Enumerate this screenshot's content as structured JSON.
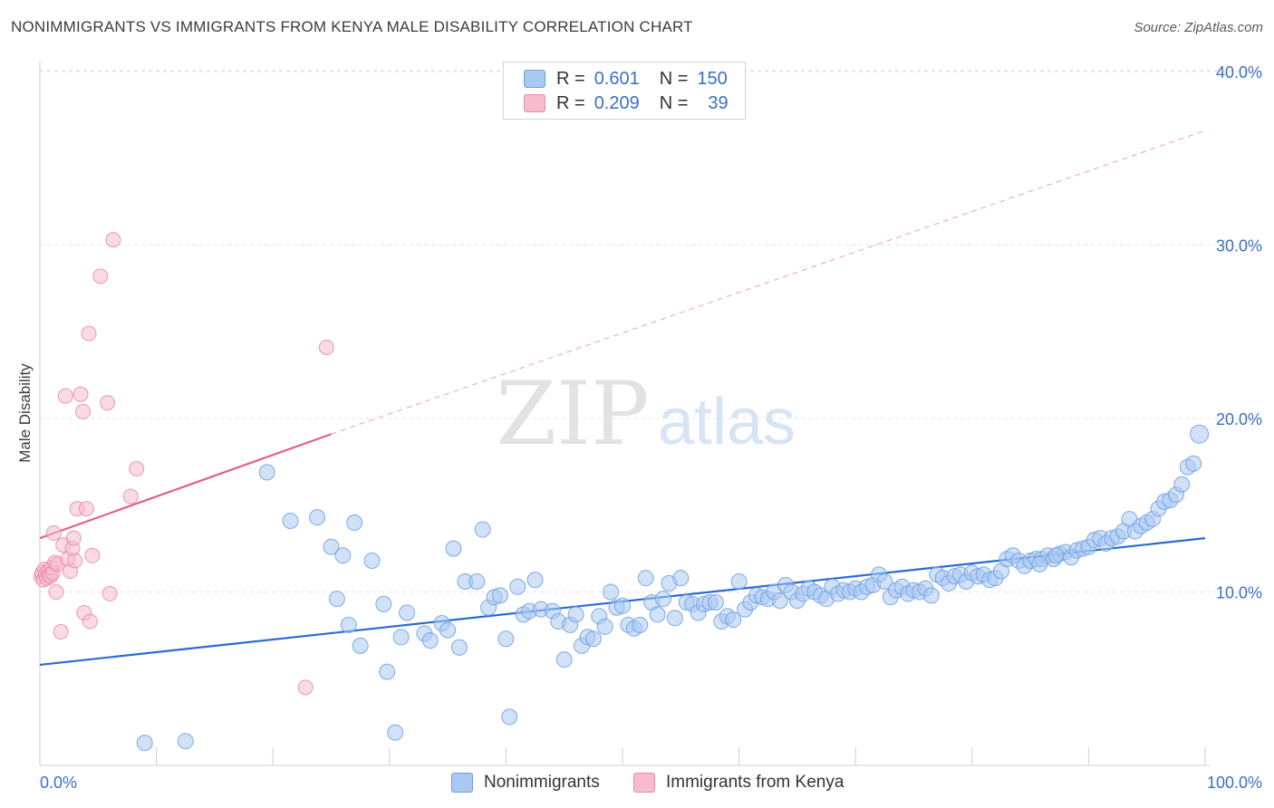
{
  "title": "NONIMMIGRANTS VS IMMIGRANTS FROM KENYA MALE DISABILITY CORRELATION CHART",
  "source": "Source: ZipAtlas.com",
  "watermark": {
    "zip": "ZIP",
    "atlas": "atlas"
  },
  "colors": {
    "blue": "#6d9fe0",
    "blue_fill": "#a9c8f2",
    "blue_line": "#2a6bd1",
    "pink": "#e88aa6",
    "pink_fill": "#f6bccd",
    "pink_line": "#e0608a",
    "axis_text": "#3a6fc4"
  },
  "legend": {
    "row1": {
      "r_label": "R =",
      "r_value": "0.601",
      "n_label": "N =",
      "n_value": "150"
    },
    "row2": {
      "r_label": "R =",
      "r_value": "0.209",
      "n_label": "N =",
      "n_value": "39"
    }
  },
  "bottom_legend": {
    "s1": "Nonimmigrants",
    "s2": "Immigrants from Kenya"
  },
  "chart_data": {
    "type": "scatter",
    "xlabel": "",
    "ylabel": "Male Disability",
    "xlim": [
      0,
      100
    ],
    "ylim": [
      0,
      40
    ],
    "x_tick_labels": [
      "0.0%",
      "100.0%"
    ],
    "y_ticks": [
      10,
      20,
      30,
      40
    ],
    "y_tick_labels": [
      "10.0%",
      "20.0%",
      "30.0%",
      "40.0%"
    ],
    "grid": true,
    "series": [
      {
        "name": "Nonimmigrants",
        "color": "#6d9fe0",
        "trend": {
          "x": [
            0,
            100
          ],
          "y": [
            5.8,
            13.1
          ],
          "style": "solid"
        },
        "points": [
          [
            9.0,
            1.3
          ],
          [
            12.5,
            1.4
          ],
          [
            19.5,
            16.9
          ],
          [
            21.5,
            14.1
          ],
          [
            23.8,
            14.3
          ],
          [
            25.0,
            12.6
          ],
          [
            25.5,
            9.6
          ],
          [
            26.0,
            12.1
          ],
          [
            26.5,
            8.1
          ],
          [
            27.0,
            14.0
          ],
          [
            27.5,
            6.9
          ],
          [
            28.5,
            11.8
          ],
          [
            29.5,
            9.3
          ],
          [
            29.8,
            5.4
          ],
          [
            30.5,
            1.9
          ],
          [
            31.0,
            7.4
          ],
          [
            31.5,
            8.8
          ],
          [
            33.0,
            7.6
          ],
          [
            33.5,
            7.2
          ],
          [
            34.5,
            8.2
          ],
          [
            35.0,
            7.8
          ],
          [
            35.5,
            12.5
          ],
          [
            36.0,
            6.8
          ],
          [
            36.5,
            10.6
          ],
          [
            37.5,
            10.6
          ],
          [
            38.0,
            13.6
          ],
          [
            38.5,
            9.1
          ],
          [
            39.0,
            9.7
          ],
          [
            39.5,
            9.8
          ],
          [
            40.0,
            7.3
          ],
          [
            40.3,
            2.8
          ],
          [
            41.0,
            10.3
          ],
          [
            41.5,
            8.7
          ],
          [
            42.0,
            8.9
          ],
          [
            42.5,
            10.7
          ],
          [
            43.0,
            9.0
          ],
          [
            44.0,
            8.9
          ],
          [
            44.5,
            8.3
          ],
          [
            45.0,
            6.1
          ],
          [
            45.5,
            8.1
          ],
          [
            46.0,
            8.7
          ],
          [
            46.5,
            6.9
          ],
          [
            47.0,
            7.4
          ],
          [
            47.5,
            7.3
          ],
          [
            48.0,
            8.6
          ],
          [
            48.5,
            8.0
          ],
          [
            49.0,
            10.0
          ],
          [
            49.5,
            9.1
          ],
          [
            50.0,
            9.2
          ],
          [
            50.5,
            8.1
          ],
          [
            51.0,
            7.9
          ],
          [
            51.5,
            8.1
          ],
          [
            52.0,
            10.8
          ],
          [
            52.5,
            9.4
          ],
          [
            53.0,
            8.7
          ],
          [
            53.5,
            9.6
          ],
          [
            54.0,
            10.5
          ],
          [
            54.5,
            8.5
          ],
          [
            55.0,
            10.8
          ],
          [
            55.5,
            9.4
          ],
          [
            56.0,
            9.3
          ],
          [
            56.5,
            8.8
          ],
          [
            57.0,
            9.3
          ],
          [
            57.5,
            9.4
          ],
          [
            58.0,
            9.4
          ],
          [
            58.5,
            8.3
          ],
          [
            59.0,
            8.6
          ],
          [
            59.5,
            8.4
          ],
          [
            60.0,
            10.6
          ],
          [
            60.5,
            9.0
          ],
          [
            61.0,
            9.4
          ],
          [
            61.5,
            9.8
          ],
          [
            62.0,
            9.7
          ],
          [
            62.5,
            9.6
          ],
          [
            63.0,
            10.0
          ],
          [
            63.5,
            9.5
          ],
          [
            64.0,
            10.4
          ],
          [
            64.5,
            10.0
          ],
          [
            65.0,
            9.5
          ],
          [
            65.5,
            9.9
          ],
          [
            66.0,
            10.2
          ],
          [
            66.5,
            10.0
          ],
          [
            67.0,
            9.8
          ],
          [
            67.5,
            9.6
          ],
          [
            68.0,
            10.3
          ],
          [
            68.5,
            9.9
          ],
          [
            69.0,
            10.1
          ],
          [
            69.5,
            10.0
          ],
          [
            70.0,
            10.2
          ],
          [
            70.5,
            10.0
          ],
          [
            71.0,
            10.3
          ],
          [
            71.5,
            10.4
          ],
          [
            72.0,
            11.0
          ],
          [
            72.5,
            10.6
          ],
          [
            73.0,
            9.7
          ],
          [
            73.5,
            10.1
          ],
          [
            74.0,
            10.3
          ],
          [
            74.5,
            9.9
          ],
          [
            75.0,
            10.1
          ],
          [
            75.5,
            10.0
          ],
          [
            76.0,
            10.2
          ],
          [
            76.5,
            9.8
          ],
          [
            77.0,
            11.0
          ],
          [
            77.5,
            10.8
          ],
          [
            78.0,
            10.5
          ],
          [
            78.5,
            10.9
          ],
          [
            79.0,
            11.0
          ],
          [
            79.5,
            10.6
          ],
          [
            80.0,
            11.1
          ],
          [
            80.5,
            10.9
          ],
          [
            81.0,
            11.0
          ],
          [
            81.5,
            10.7
          ],
          [
            82.0,
            10.8
          ],
          [
            82.5,
            11.2
          ],
          [
            83.0,
            11.9
          ],
          [
            83.5,
            12.1
          ],
          [
            84.0,
            11.8
          ],
          [
            84.5,
            11.5
          ],
          [
            85.0,
            11.8
          ],
          [
            85.5,
            11.9
          ],
          [
            86.0,
            11.9
          ],
          [
            86.5,
            12.1
          ],
          [
            87.0,
            11.9
          ],
          [
            87.5,
            12.2
          ],
          [
            88.0,
            12.3
          ],
          [
            88.5,
            12.0
          ],
          [
            89.0,
            12.4
          ],
          [
            89.5,
            12.5
          ],
          [
            90.0,
            12.6
          ],
          [
            90.5,
            13.0
          ],
          [
            91.0,
            13.1
          ],
          [
            91.5,
            12.8
          ],
          [
            92.0,
            13.1
          ],
          [
            92.5,
            13.2
          ],
          [
            93.0,
            13.5
          ],
          [
            93.5,
            14.2
          ],
          [
            94.0,
            13.5
          ],
          [
            94.5,
            13.8
          ],
          [
            95.0,
            14.0
          ],
          [
            95.5,
            14.2
          ],
          [
            96.0,
            14.8
          ],
          [
            96.5,
            15.2
          ],
          [
            97.0,
            15.3
          ],
          [
            97.5,
            15.6
          ],
          [
            98.0,
            16.2
          ],
          [
            98.5,
            17.2
          ],
          [
            99.0,
            17.4
          ],
          [
            99.5,
            19.1
          ],
          [
            85.8,
            11.6
          ],
          [
            87.2,
            12.1
          ]
        ]
      },
      {
        "name": "Immigrants from Kenya",
        "color": "#e88aa6",
        "trend": {
          "x": [
            0,
            25
          ],
          "y": [
            13.1,
            19.1
          ],
          "style": "solid",
          "extension": {
            "x": [
              25,
              100
            ],
            "y": [
              19.1,
              36.6
            ],
            "style": "dashed"
          }
        },
        "points": [
          [
            0.1,
            10.9
          ],
          [
            0.2,
            11.1
          ],
          [
            0.3,
            10.7
          ],
          [
            0.4,
            11.3
          ],
          [
            0.5,
            11.0
          ],
          [
            0.6,
            10.8
          ],
          [
            0.7,
            11.2
          ],
          [
            0.8,
            11.0
          ],
          [
            0.9,
            10.9
          ],
          [
            1.0,
            11.4
          ],
          [
            1.1,
            11.1
          ],
          [
            1.2,
            13.4
          ],
          [
            1.3,
            11.7
          ],
          [
            1.4,
            10.0
          ],
          [
            1.5,
            11.6
          ],
          [
            1.8,
            7.7
          ],
          [
            2.0,
            12.7
          ],
          [
            2.2,
            21.3
          ],
          [
            2.4,
            11.9
          ],
          [
            2.6,
            11.2
          ],
          [
            2.8,
            12.5
          ],
          [
            2.9,
            13.1
          ],
          [
            3.0,
            11.8
          ],
          [
            3.2,
            14.8
          ],
          [
            3.5,
            21.4
          ],
          [
            3.7,
            20.4
          ],
          [
            3.8,
            8.8
          ],
          [
            4.0,
            14.8
          ],
          [
            4.2,
            24.9
          ],
          [
            4.3,
            8.3
          ],
          [
            4.5,
            12.1
          ],
          [
            5.2,
            28.2
          ],
          [
            5.8,
            20.9
          ],
          [
            6.0,
            9.9
          ],
          [
            6.3,
            30.3
          ],
          [
            7.8,
            15.5
          ],
          [
            8.3,
            17.1
          ],
          [
            22.8,
            4.5
          ],
          [
            24.6,
            24.1
          ]
        ]
      }
    ]
  }
}
